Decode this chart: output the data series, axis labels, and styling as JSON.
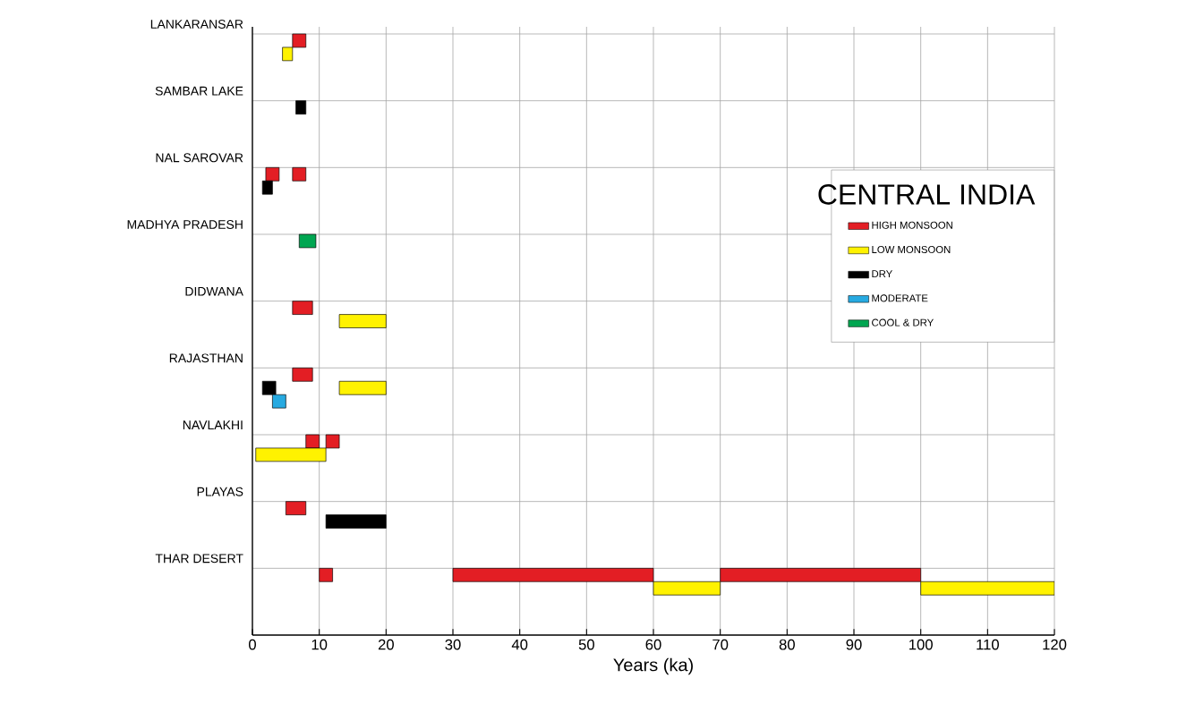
{
  "chart_data": {
    "type": "bar",
    "orientation": "horizontal",
    "categories": [
      "LANKARANSAR",
      "SAMBAR LAKE",
      "NAL SAROVAR",
      "MADHYA PRADESH",
      "DIDWANA",
      "RAJASTHAN",
      "NAVLAKHI",
      "PLAYAS",
      "THAR DESERT"
    ],
    "series": [
      {
        "name": "HIGH MONSOON",
        "color": "#e31e24",
        "base": [
          6,
          null,
          2,
          null,
          6,
          6,
          8,
          5,
          10
        ],
        "values": [
          2,
          null,
          2,
          null,
          3,
          3,
          2,
          3,
          2
        ]
      },
      {
        "color": "#e31e24",
        "base": [
          null,
          null,
          6,
          null,
          null,
          null,
          11,
          null,
          30
        ],
        "values": [
          null,
          null,
          2,
          null,
          null,
          null,
          2,
          null,
          30
        ]
      },
      {
        "color": "#e31e24",
        "base": [
          null,
          null,
          null,
          null,
          null,
          null,
          null,
          null,
          70
        ],
        "values": [
          null,
          null,
          null,
          null,
          null,
          null,
          null,
          null,
          30
        ]
      },
      {
        "name": "LOW MONSOON",
        "color": "#fff200",
        "base": [
          4.5,
          null,
          null,
          null,
          13,
          13,
          0.5,
          null,
          60
        ],
        "values": [
          1.5,
          null,
          null,
          null,
          7,
          7,
          10.5,
          null,
          10
        ]
      },
      {
        "color": "#fff200",
        "base": [
          null,
          null,
          null,
          null,
          null,
          null,
          null,
          null,
          100
        ],
        "values": [
          null,
          null,
          null,
          null,
          null,
          null,
          null,
          null,
          20
        ]
      },
      {
        "name": "DRY",
        "color": "#000000",
        "base": [
          null,
          6.5,
          1.5,
          null,
          null,
          1.5,
          null,
          11,
          null
        ],
        "values": [
          null,
          1.5,
          1.5,
          null,
          null,
          2,
          null,
          9,
          null
        ]
      },
      {
        "name": "MODERATE",
        "color": "#27aae1",
        "base": [
          null,
          null,
          null,
          null,
          null,
          3,
          null,
          null,
          null
        ],
        "values": [
          null,
          null,
          null,
          null,
          null,
          2,
          null,
          null,
          null
        ]
      },
      {
        "name": "COOL & DRY",
        "color": "#00a651",
        "base": [
          null,
          null,
          null,
          7,
          null,
          null,
          null,
          null,
          null
        ],
        "values": [
          null,
          null,
          null,
          2.5,
          null,
          null,
          null,
          null,
          null
        ]
      }
    ],
    "xlim": [
      0,
      120
    ],
    "xticks": [
      0,
      10,
      20,
      30,
      40,
      50,
      60,
      70,
      80,
      90,
      100,
      110,
      120
    ],
    "xlabel": "Years (ka)",
    "legend_title": "CENTRAL INDIA",
    "legend": "right",
    "grid": true
  }
}
